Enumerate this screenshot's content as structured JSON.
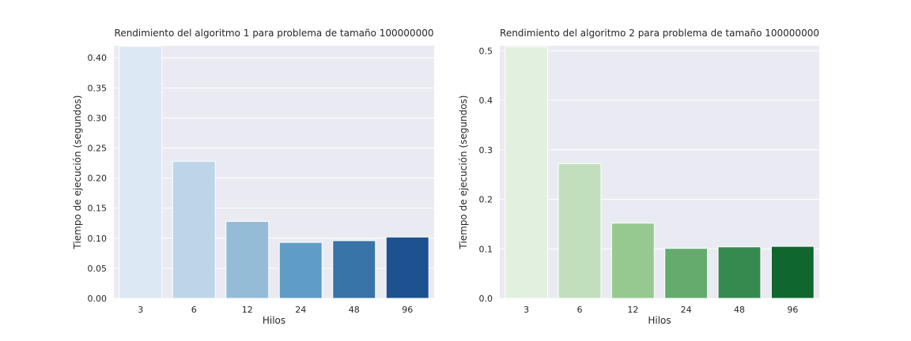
{
  "chart_data": [
    {
      "type": "bar",
      "title": "Rendimiento del algoritmo 1 para problema de tamaño 100000000",
      "xlabel": "Hilos",
      "ylabel": "Tiempo de ejecución (segundos)",
      "categories": [
        "3",
        "6",
        "12",
        "24",
        "48",
        "96"
      ],
      "values": [
        0.419,
        0.228,
        0.128,
        0.093,
        0.096,
        0.102
      ],
      "ylim": [
        0,
        0.42
      ],
      "yticks": [
        0.0,
        0.05,
        0.1,
        0.15,
        0.2,
        0.25,
        0.3,
        0.35,
        0.4
      ],
      "ytick_labels": [
        "0.00",
        "0.05",
        "0.10",
        "0.15",
        "0.20",
        "0.25",
        "0.30",
        "0.35",
        "0.40"
      ],
      "palette": "Blues",
      "colors": [
        "#dce8f4",
        "#bdd5e8",
        "#94bcd6",
        "#5f9dc6",
        "#3874a8",
        "#1c5290"
      ],
      "grid": true,
      "legend": "none"
    },
    {
      "type": "bar",
      "title": "Rendimiento del algoritmo 2 para problema de tamaño 100000000",
      "xlabel": "Hilos",
      "ylabel": "Tiempo de ejecución (segundos)",
      "categories": [
        "3",
        "6",
        "12",
        "24",
        "48",
        "96"
      ],
      "values": [
        0.508,
        0.272,
        0.152,
        0.101,
        0.104,
        0.105
      ],
      "ylim": [
        0,
        0.51
      ],
      "yticks": [
        0.0,
        0.1,
        0.2,
        0.3,
        0.4,
        0.5
      ],
      "ytick_labels": [
        "0.0",
        "0.1",
        "0.2",
        "0.3",
        "0.4",
        "0.5"
      ],
      "palette": "Greens",
      "colors": [
        "#e1f0df",
        "#c1dfbc",
        "#96c990",
        "#64ab6d",
        "#368a50",
        "#10672e"
      ],
      "grid": true,
      "legend": "none"
    }
  ]
}
